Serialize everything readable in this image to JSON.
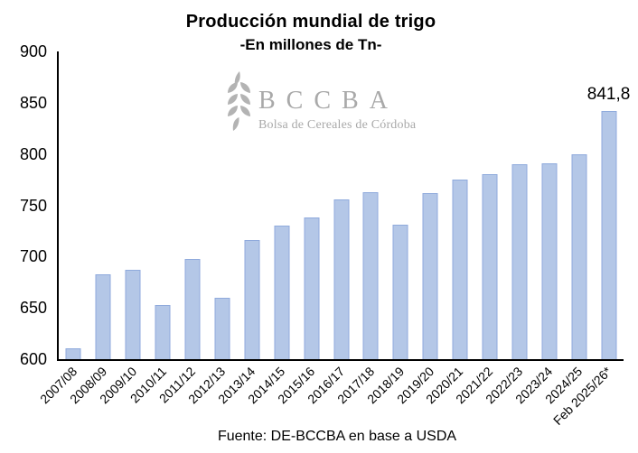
{
  "title": "Producción mundial de trigo",
  "subtitle": "-En millones de Tn-",
  "source": "Fuente: DE-BCCBA en base a USDA",
  "watermark": {
    "icon": "wheat-ear-icon",
    "acronym": "BCCBA",
    "name": "Bolsa de Cereales de Córdoba"
  },
  "colors": {
    "bar_fill": "#b4c7e7",
    "bar_border": "#8faadc",
    "axis": "#000000",
    "text": "#000000",
    "watermark_gray": "#a9a9a9"
  },
  "chart_data": {
    "type": "bar",
    "title": "Producción mundial de trigo",
    "subtitle": "-En millones de Tn-",
    "xlabel": "",
    "ylabel": "",
    "units": "millones de Tn",
    "categories": [
      "2007/08",
      "2008/09",
      "2009/10",
      "2010/11",
      "2011/12",
      "2012/13",
      "2013/14",
      "2014/15",
      "2015/16",
      "2016/17",
      "2017/18",
      "2018/19",
      "2019/20",
      "2020/21",
      "2021/22",
      "2022/23",
      "2023/24",
      "2024/25",
      "Feb 2025/26*"
    ],
    "values": [
      611,
      683,
      687,
      653,
      698,
      660,
      716,
      730,
      738,
      756,
      763,
      731,
      762,
      775,
      780,
      790,
      791,
      800,
      841.8
    ],
    "ylim": [
      600,
      900
    ],
    "yticks": [
      600,
      650,
      700,
      750,
      800,
      850,
      900
    ],
    "grid": false,
    "legend": "none",
    "data_label": {
      "category_index": 18,
      "text": "841,8"
    }
  }
}
